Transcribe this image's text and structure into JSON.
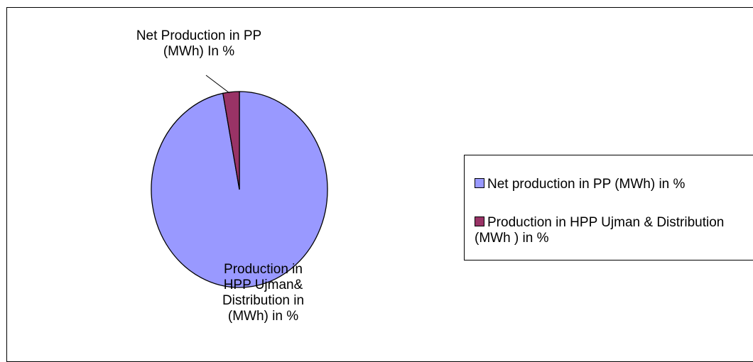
{
  "chart_data": {
    "type": "pie",
    "categories": [
      "Net production in PP (MWh) in %",
      "Production in HPP Ujman & Distribution (MWh ) in %"
    ],
    "values": [
      97,
      3
    ],
    "colors": [
      "#9999ff",
      "#993366"
    ],
    "annotations": [
      "Production in HPP Ujman& Distribution in (MWh) in %",
      "Net Production in PP (MWh) In %"
    ],
    "legend": "right"
  }
}
